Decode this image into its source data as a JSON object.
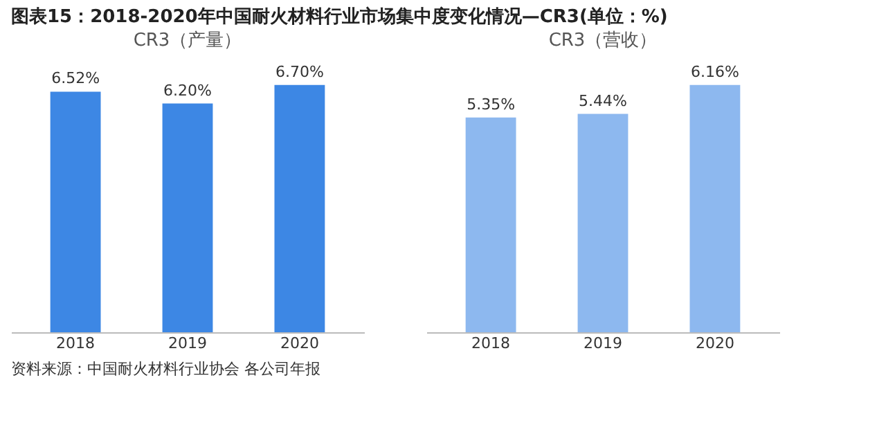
{
  "chart_data": [
    {
      "type": "other",
      "title": "图表15：2018-2020年中国耐火材料行业市场集中度变化情况—CR3(单位：%)",
      "annotations": [
        "资料来源：中国耐火材料行业协会 各公司年报"
      ]
    },
    {
      "type": "bar",
      "title": "CR3（产量）",
      "categories": [
        "2018",
        "2019",
        "2020"
      ],
      "values": [
        6.52,
        6.2,
        6.7
      ],
      "value_labels": [
        "6.52%",
        "6.20%",
        "6.70%"
      ],
      "color": "#3d87e4",
      "tick_labels": "x"
    },
    {
      "type": "bar",
      "title": "CR3（营收）",
      "categories": [
        "2018",
        "2019",
        "2020"
      ],
      "values": [
        5.35,
        5.44,
        6.16
      ],
      "value_labels": [
        "5.35%",
        "5.44%",
        "6.16%"
      ],
      "color": "#8db8ef",
      "tick_labels": "x"
    }
  ]
}
